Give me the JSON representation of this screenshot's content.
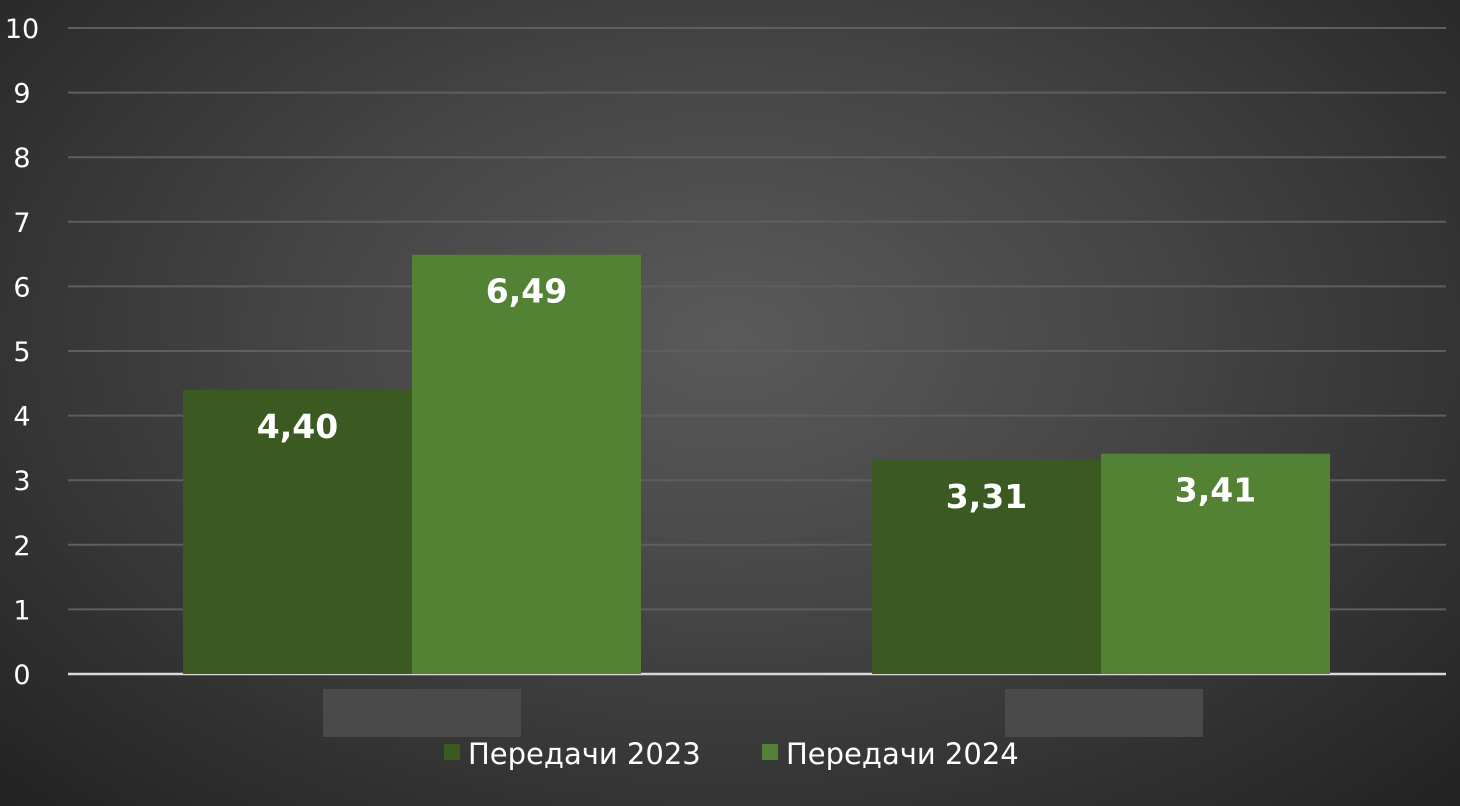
{
  "chart_data": {
    "type": "bar",
    "categories": [
      "",
      ""
    ],
    "series": [
      {
        "name": "Передачи 2023",
        "values": [
          4.4,
          3.31
        ],
        "labels": [
          "4,40",
          "3,31"
        ],
        "color": "#3b5a22"
      },
      {
        "name": "Передачи 2024",
        "values": [
          6.49,
          3.41
        ],
        "labels": [
          "6,49",
          "3,41"
        ],
        "color": "#548235"
      }
    ],
    "yticks": [
      "0",
      "1",
      "2",
      "3",
      "4",
      "5",
      "6",
      "7",
      "8",
      "9",
      "10"
    ],
    "ylim": [
      0,
      10
    ],
    "grid": true,
    "legend": "bottom-center",
    "category_label_placeholder_color": "#4a4a4a",
    "gridline_color": "#5e5e5e",
    "axis_color": "#d9d9d9"
  }
}
